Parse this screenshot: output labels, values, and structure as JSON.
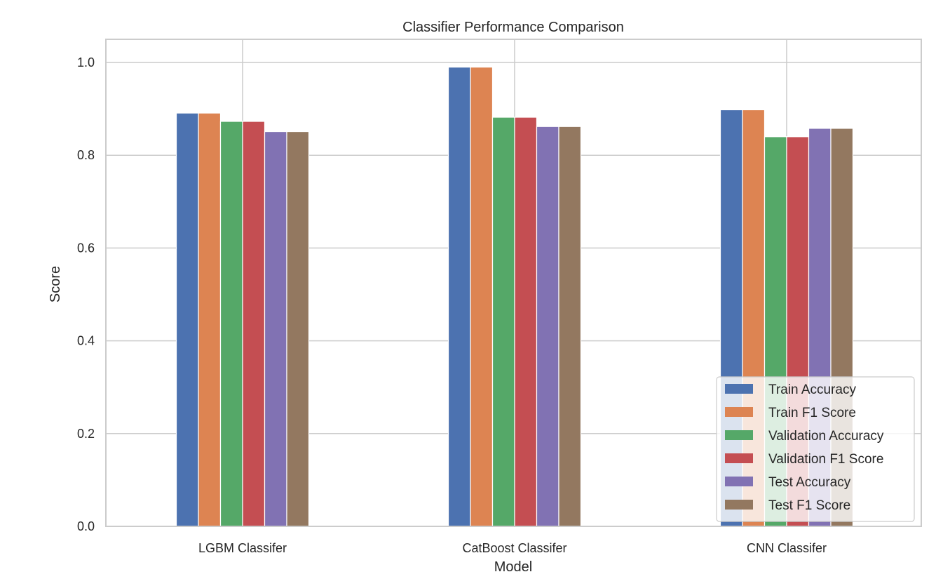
{
  "chart_data": {
    "type": "bar",
    "title": "Classifier Performance Comparison",
    "xlabel": "Model",
    "ylabel": "Score",
    "ylim": [
      0,
      1.05
    ],
    "yticks": [
      0.0,
      0.2,
      0.4,
      0.6,
      0.8,
      1.0
    ],
    "ytick_labels": [
      "0.0",
      "0.2",
      "0.4",
      "0.6",
      "0.8",
      "1.0"
    ],
    "categories": [
      "LGBM Classifer",
      "CatBoost Classifer",
      "CNN Classifer"
    ],
    "series": [
      {
        "name": "Train Accuracy",
        "color": "#4c72b0",
        "values": [
          0.891,
          0.99,
          0.898
        ]
      },
      {
        "name": "Train F1 Score",
        "color": "#dd8452",
        "values": [
          0.891,
          0.99,
          0.898
        ]
      },
      {
        "name": "Validation Accuracy",
        "color": "#55a868",
        "values": [
          0.873,
          0.882,
          0.84
        ]
      },
      {
        "name": "Validation F1 Score",
        "color": "#c44e52",
        "values": [
          0.873,
          0.882,
          0.84
        ]
      },
      {
        "name": "Test Accuracy",
        "color": "#8172b3",
        "values": [
          0.851,
          0.862,
          0.858
        ]
      },
      {
        "name": "Test F1 Score",
        "color": "#937860",
        "values": [
          0.851,
          0.862,
          0.858
        ]
      }
    ],
    "grid": true,
    "legend_position": "lower-right"
  }
}
